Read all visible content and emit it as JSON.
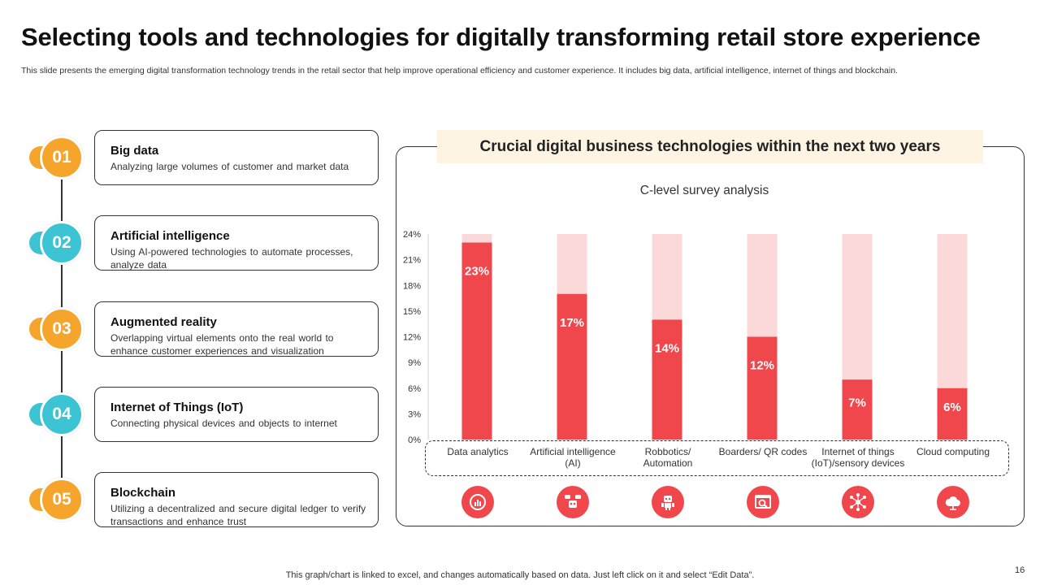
{
  "slide": {
    "title": "Selecting tools and technologies for digitally transforming retail store experience",
    "subtitle": "This slide presents the emerging digital transformation technology trends in the retail sector that help improve operational efficiency and customer experience. It includes big data, artificial intelligence, internet of things and blockchain.",
    "footer": "This graph/chart is linked to excel,  and changes automatically based on data. Just left click on it and select “Edit Data”.",
    "page_number": "16"
  },
  "steps": [
    {
      "number": "01",
      "title": "Big data",
      "desc": "Analyzing large volumes of customer and market data",
      "color": "#f5a52c"
    },
    {
      "number": "02",
      "title": "Artificial intelligence",
      "desc": "Using AI-powered technologies to automate processes, analyze data",
      "color": "#3cc3d4"
    },
    {
      "number": "03",
      "title": "Augmented reality",
      "desc": "Overlapping virtual elements onto the real world to enhance customer experiences and visualization",
      "color": "#f5a52c"
    },
    {
      "number": "04",
      "title": "Internet of Things (IoT)",
      "desc": "Connecting physical devices and objects to internet",
      "color": "#3cc3d4"
    },
    {
      "number": "05",
      "title": "Blockchain",
      "desc": "Utilizing a decentralized and secure digital ledger to verify transactions and enhance trust",
      "color": "#f5a52c"
    }
  ],
  "panel": {
    "heading": "Crucial digital business technologies within the next two years"
  },
  "chart_data": {
    "type": "bar",
    "title": "C-level survey analysis",
    "categories": [
      "Data analytics",
      "Artificial intelligence (AI)",
      "Robbotics/ Automation",
      "Boarders/ QR codes",
      "Internet of things (IoT)/sensory devices",
      "Cloud computing"
    ],
    "values": [
      23,
      17,
      14,
      12,
      7,
      6
    ],
    "value_labels": [
      "23%",
      "17%",
      "14%",
      "12%",
      "7%",
      "6%"
    ],
    "background_value": 24,
    "ylim": [
      0,
      24
    ],
    "yticks": [
      0,
      3,
      6,
      9,
      12,
      15,
      18,
      21,
      24
    ],
    "ytick_labels": [
      "0%",
      "3%",
      "6%",
      "9%",
      "12%",
      "15%",
      "18%",
      "21%",
      "24%"
    ],
    "bar_color": "#f0474d",
    "background_color": "#fcd9d9",
    "grid": false,
    "legend": "none"
  },
  "category_icons": [
    "analytics-icon",
    "robot-chat-icon",
    "robot-icon",
    "qr-scan-icon",
    "network-icon",
    "cloud-icon"
  ]
}
